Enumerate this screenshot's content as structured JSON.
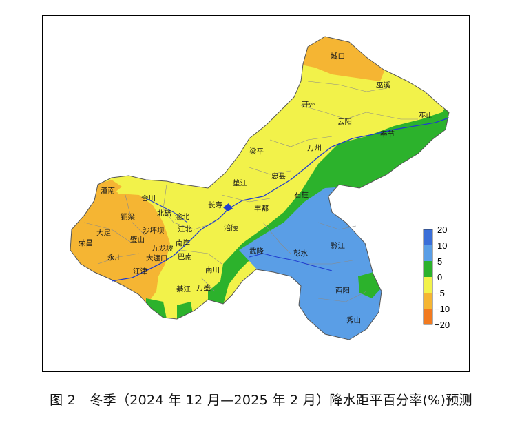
{
  "caption": {
    "figure_label": "图 2",
    "text": "冬季（2024 年 12 月—2025 年 2 月）降水距平百分率(%)预测"
  },
  "legend": {
    "ticks": [
      "20",
      "10",
      "5",
      "0",
      "−5",
      "−10",
      "−20"
    ],
    "colors": [
      "#3b6fd8",
      "#5a9ee6",
      "#2cb22c",
      "#f2f24a",
      "#f5b533",
      "#f27a1f"
    ]
  },
  "district_labels": [
    "城口",
    "巫溪",
    "开州",
    "巫山",
    "云阳",
    "奉节",
    "万州",
    "梁平",
    "垫江",
    "忠县",
    "潼南",
    "合川",
    "石柱",
    "长寿",
    "丰都",
    "铜梁",
    "北碚",
    "渝北",
    "大足",
    "沙坪坝",
    "江北",
    "涪陵",
    "荣昌",
    "璧山",
    "九龙坡",
    "南岸",
    "武隆",
    "彭水",
    "黔江",
    "永川",
    "大渡口",
    "巴南",
    "江津",
    "南川",
    "綦江",
    "万盛",
    "酉阳",
    "秀山"
  ]
}
